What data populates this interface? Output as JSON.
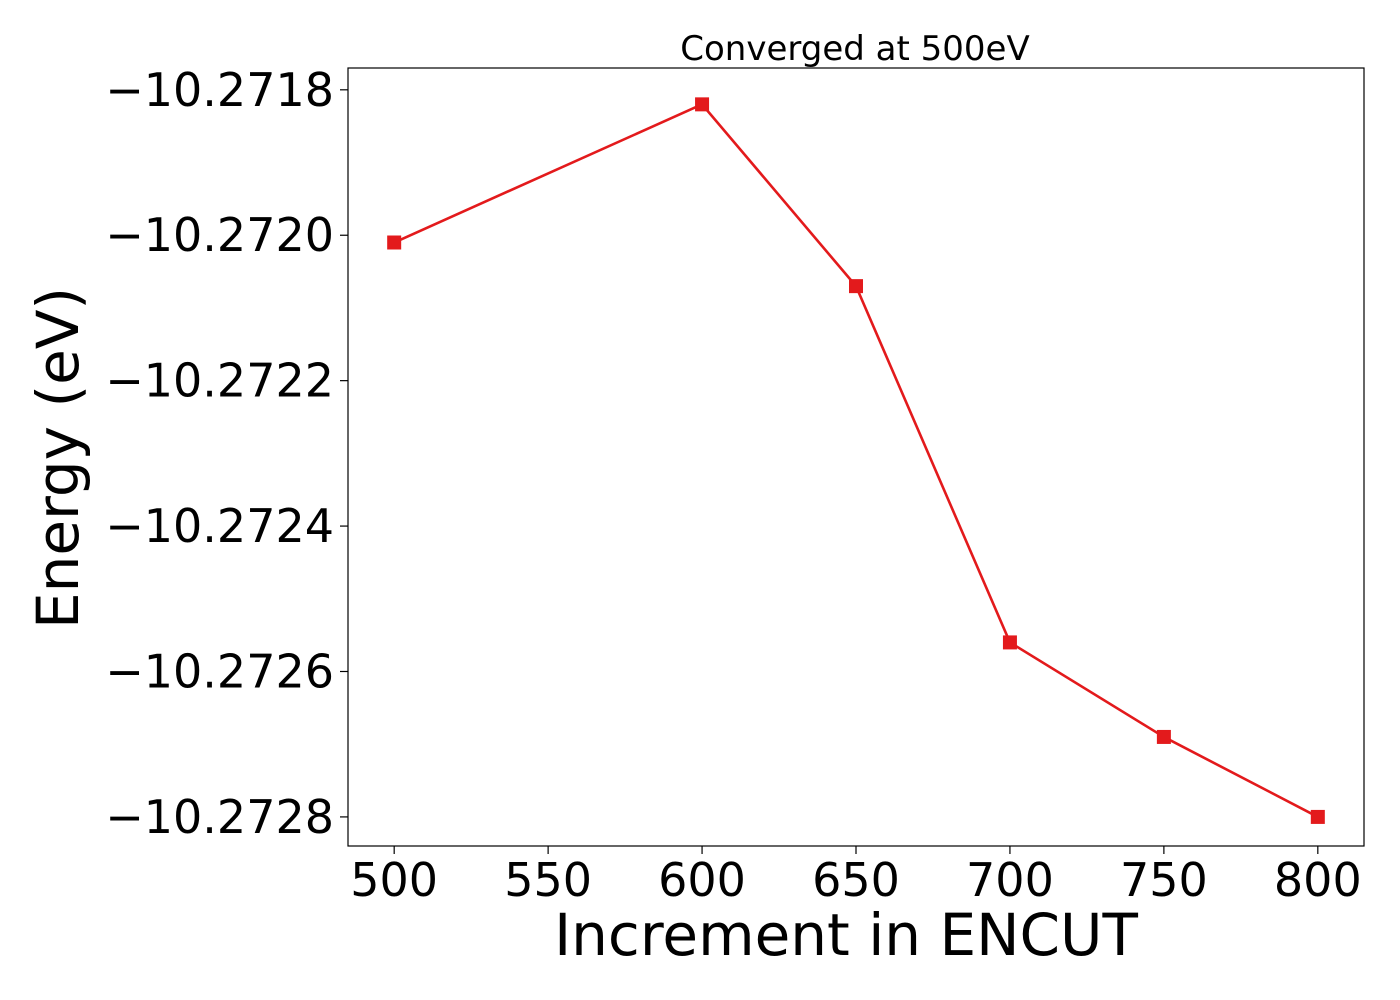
{
  "chart_data": {
    "type": "line",
    "title": "Converged at 500eV",
    "xlabel": "Increment in ENCUT",
    "ylabel": "Energy (eV)",
    "x": [
      500,
      600,
      650,
      700,
      750,
      800
    ],
    "series": [
      {
        "values": [
          -10.27201,
          -10.27182,
          -10.27207,
          -10.27256,
          -10.27269,
          -10.2728
        ],
        "color": "#e31a1c",
        "marker": "square"
      }
    ],
    "xlim": [
      485,
      815
    ],
    "ylim": [
      -10.27284,
      -10.27177
    ],
    "x_ticks": [
      500,
      550,
      600,
      650,
      700,
      750,
      800
    ],
    "x_tick_labels": [
      "500",
      "550",
      "600",
      "650",
      "700",
      "750",
      "800"
    ],
    "y_ticks": [
      -10.2728,
      -10.2726,
      -10.2724,
      -10.2722,
      -10.272,
      -10.2718
    ],
    "y_tick_labels": [
      "−10.2728",
      "−10.2726",
      "−10.2724",
      "−10.2722",
      "−10.2720",
      "−10.2718"
    ],
    "grid": false,
    "legend": "none"
  }
}
